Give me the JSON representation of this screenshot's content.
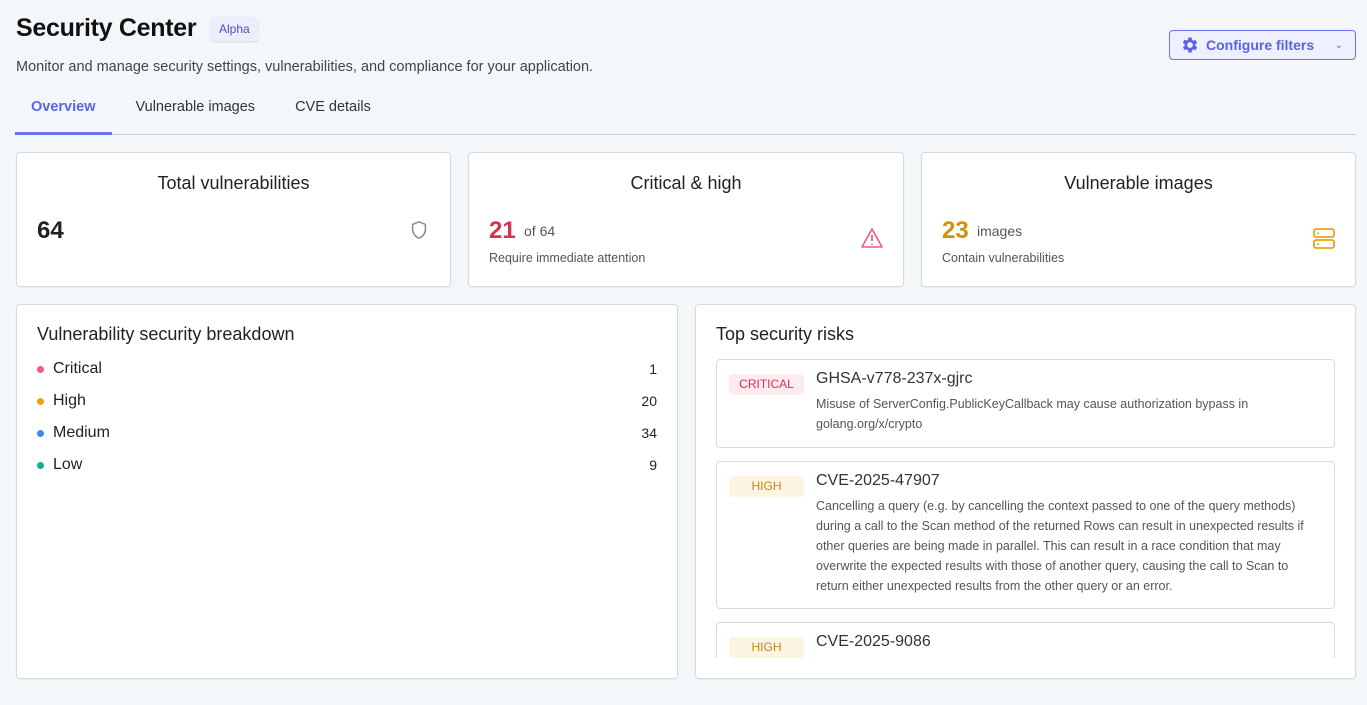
{
  "header": {
    "title": "Security Center",
    "badge": "Alpha",
    "subtitle": "Monitor and manage security settings, vulnerabilities, and compliance for your application.",
    "configure_label": "Configure filters"
  },
  "tabs": [
    {
      "label": "Overview",
      "active": true
    },
    {
      "label": "Vulnerable images"
    },
    {
      "label": "CVE details"
    }
  ],
  "cards": {
    "total": {
      "title": "Total vulnerabilities",
      "value": "64",
      "icon": "shield-icon"
    },
    "critical": {
      "title": "Critical & high",
      "value": "21",
      "of": "of 64",
      "note": "Require immediate attention",
      "icon": "warning-icon",
      "color": "#dc3050"
    },
    "images": {
      "title": "Vulnerable images",
      "value": "23",
      "unit": "images",
      "note": "Contain vulnerabilities",
      "icon": "server-icon",
      "color": "#d4900a"
    }
  },
  "breakdown": {
    "title": "Vulnerability security breakdown",
    "items": [
      {
        "label": "Critical",
        "count": "1",
        "color": "#ef5b7a"
      },
      {
        "label": "High",
        "count": "20",
        "color": "#f0a010"
      },
      {
        "label": "Medium",
        "count": "34",
        "color": "#3b8ef0"
      },
      {
        "label": "Low",
        "count": "9",
        "color": "#14b08a"
      }
    ]
  },
  "risks": {
    "title": "Top security risks",
    "items": [
      {
        "severity": "CRITICAL",
        "id": "GHSA-v778-237x-gjrc",
        "desc": "Misuse of ServerConfig.PublicKeyCallback may cause authorization bypass in golang.org/x/crypto"
      },
      {
        "severity": "HIGH",
        "id": "CVE-2025-47907",
        "desc": "Cancelling a query (e.g. by cancelling the context passed to one of the query methods) during a call to the Scan method of the returned Rows can result in unexpected results if other queries are being made in parallel. This can result in a race condition that may overwrite the expected results with those of another query, causing the call to Scan to return either unexpected results from the other query or an error."
      },
      {
        "severity": "HIGH",
        "id": "CVE-2025-9086",
        "desc": ""
      }
    ]
  }
}
